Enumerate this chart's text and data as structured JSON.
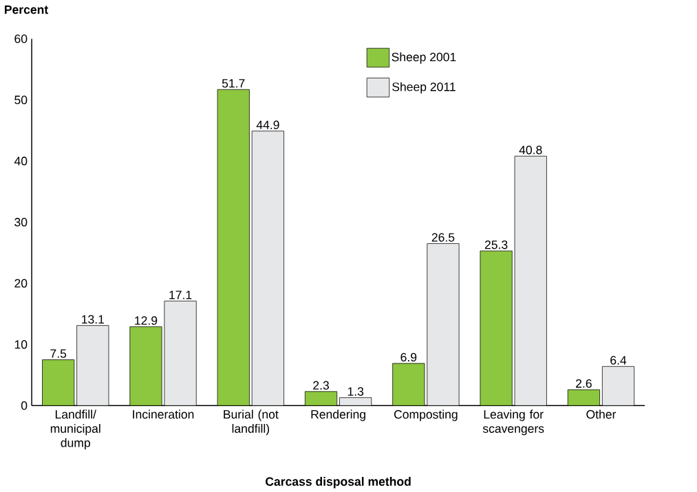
{
  "chart_data": {
    "type": "bar",
    "ylabel": "Percent",
    "xlabel": "Carcass disposal method",
    "categories": [
      "Landfill/ municipal dump",
      "Incineration",
      "Burial (not landfill)",
      "Rendering",
      "Composting",
      "Leaving for scavengers",
      "Other"
    ],
    "series": [
      {
        "name": "Sheep 2001",
        "color": "#8dc63f",
        "values": [
          7.5,
          12.9,
          51.7,
          2.3,
          6.9,
          25.3,
          2.6
        ]
      },
      {
        "name": "Sheep 2011",
        "color": "#e6e7e8",
        "values": [
          13.1,
          17.1,
          44.9,
          1.3,
          26.5,
          40.8,
          6.4
        ]
      }
    ],
    "ylim": [
      0,
      60
    ],
    "yticks": [
      0,
      10,
      20,
      30,
      40,
      50,
      60
    ],
    "data_labels": true,
    "legend": "top right",
    "grid": false
  }
}
